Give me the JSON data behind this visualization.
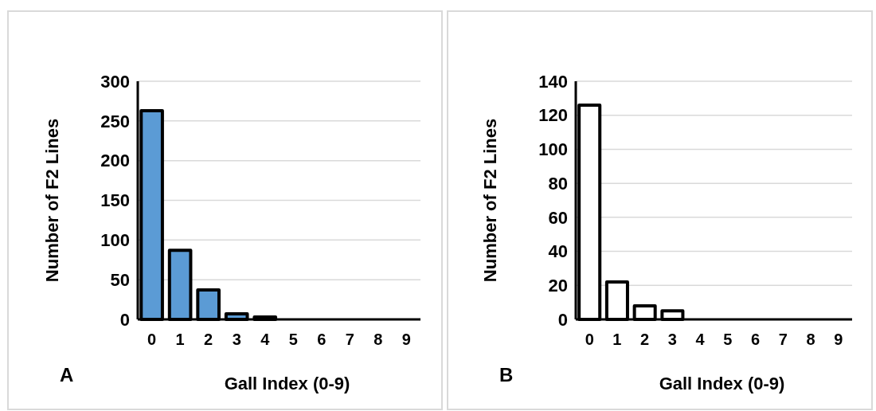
{
  "chart_data": [
    {
      "type": "bar",
      "xlabel": "Gall Index (0-9)",
      "ylabel": "Number of F2 Lines",
      "annotations": [
        "A"
      ],
      "categories": [
        "0",
        "1",
        "2",
        "3",
        "4",
        "5",
        "6",
        "7",
        "8",
        "9"
      ],
      "values": [
        263,
        87,
        37,
        7,
        3,
        0,
        0,
        0,
        0,
        0
      ],
      "color": "#5b9bd5",
      "ylim": [
        0,
        300
      ],
      "yticks": [
        0,
        50,
        100,
        150,
        200,
        250,
        300
      ],
      "grid": "y"
    },
    {
      "type": "bar",
      "xlabel": "Gall Index (0-9)",
      "ylabel": "Number of F2 Lines",
      "annotations": [
        "B"
      ],
      "categories": [
        "0",
        "1",
        "2",
        "3",
        "4",
        "5",
        "6",
        "7",
        "8",
        "9"
      ],
      "values": [
        126,
        22,
        8,
        5,
        0,
        0,
        0,
        0,
        0,
        0
      ],
      "color": "#ffffff",
      "ylim": [
        0,
        140
      ],
      "yticks": [
        0,
        20,
        40,
        60,
        80,
        100,
        120,
        140
      ],
      "grid": "y"
    }
  ]
}
